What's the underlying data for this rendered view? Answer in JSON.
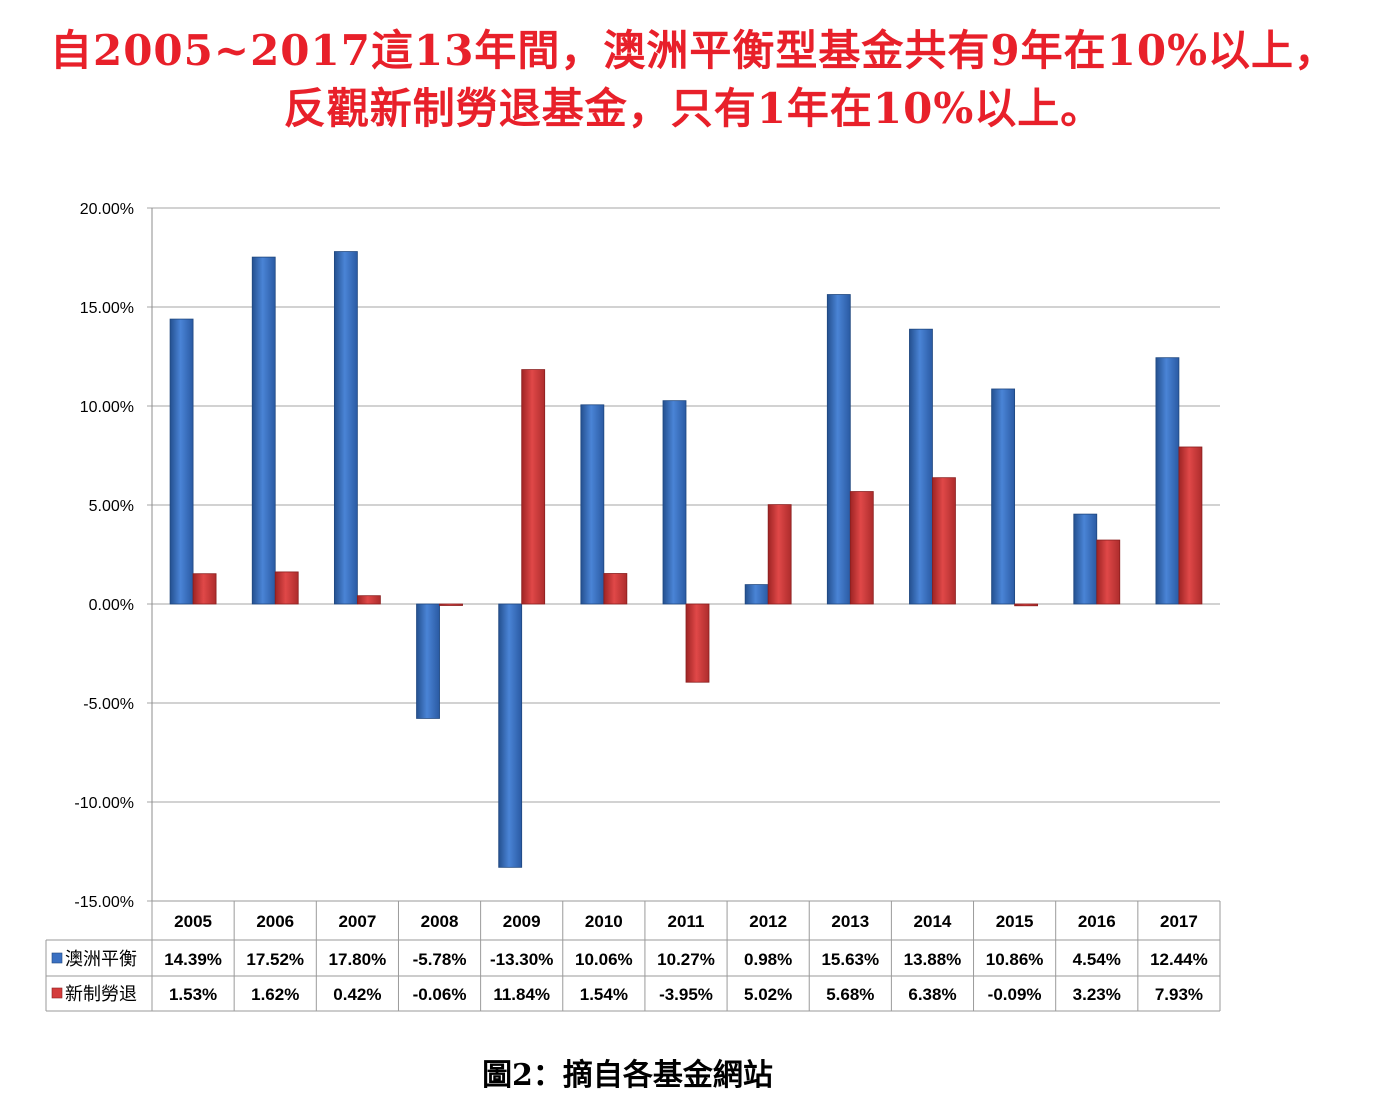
{
  "headline": {
    "line1": "自2005~2017這13年間，澳洲平衡型基金共有9年在10%以上，",
    "line2": "反觀新制勞退基金，只有1年在10%以上。"
  },
  "caption": "圖2：摘自各基金網站",
  "colors": {
    "headline": "#e8202a",
    "series_aus": "#3a70c2",
    "series_labor": "#d43b3b",
    "grid": "#a6a6a6"
  },
  "chart_data": {
    "type": "bar",
    "categories": [
      "2005",
      "2006",
      "2007",
      "2008",
      "2009",
      "2010",
      "2011",
      "2012",
      "2013",
      "2014",
      "2015",
      "2016",
      "2017"
    ],
    "series": [
      {
        "name": "澳洲平衡",
        "color": "#3a70c2",
        "values": [
          14.39,
          17.52,
          17.8,
          -5.78,
          -13.3,
          10.06,
          10.27,
          0.98,
          15.63,
          13.88,
          10.86,
          4.54,
          12.44
        ],
        "labels": [
          "14.39%",
          "17.52%",
          "17.80%",
          "-5.78%",
          "-13.30%",
          "10.06%",
          "10.27%",
          "0.98%",
          "15.63%",
          "13.88%",
          "10.86%",
          "4.54%",
          "12.44%"
        ]
      },
      {
        "name": "新制勞退",
        "color": "#d43b3b",
        "values": [
          1.53,
          1.62,
          0.42,
          -0.06,
          11.84,
          1.54,
          -3.95,
          5.02,
          5.68,
          6.38,
          -0.09,
          3.23,
          7.93
        ],
        "labels": [
          "1.53%",
          "1.62%",
          "0.42%",
          "-0.06%",
          "11.84%",
          "1.54%",
          "-3.95%",
          "5.02%",
          "5.68%",
          "6.38%",
          "-0.09%",
          "3.23%",
          "7.93%"
        ]
      }
    ],
    "ylim": [
      -15,
      20
    ],
    "yticks": [
      20,
      15,
      10,
      5,
      0,
      -5,
      -10,
      -15
    ],
    "ytick_labels": [
      "20.00%",
      "15.00%",
      "10.00%",
      "5.00%",
      "0.00%",
      "-5.00%",
      "-10.00%",
      "-15.00%"
    ],
    "grid": true,
    "legend": "data-table",
    "title": "",
    "xlabel": "",
    "ylabel": ""
  }
}
